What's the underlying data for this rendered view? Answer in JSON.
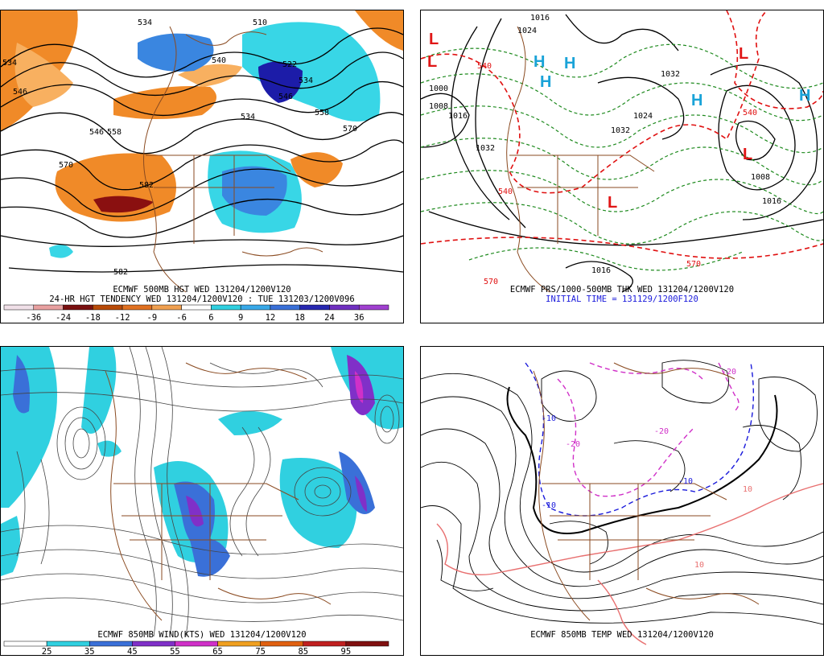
{
  "panels": {
    "hgt500": {
      "title": "ECMWF 500MB HGT WED 131204/1200V120",
      "subtitle": "24-HR HGT TENDENCY WED 131204/1200V120 : TUE 131203/1200V096",
      "colorbar_labels": [
        "-36",
        "-24",
        "-18",
        "-12",
        "-9",
        "-6",
        "6",
        "9",
        "12",
        "18",
        "24",
        "36"
      ],
      "colorbar_colors": [
        "#f0e0e8",
        "#e8a0a0",
        "#7a1010",
        "#b84a08",
        "#e07020",
        "#f0a050",
        "#ffffff",
        "#30d0e0",
        "#38a8e8",
        "#3a70d8",
        "#2828b0",
        "#7030c0",
        "#a040d0"
      ],
      "contour_labels": [
        "534",
        "510",
        "534",
        "522",
        "546",
        "534",
        "546",
        "540",
        "558",
        "570",
        "534",
        "546",
        "558",
        "570",
        "582",
        "582"
      ]
    },
    "prs": {
      "title": "ECMWF PRS/1000-500MB THK WED 131204/1200V120",
      "initial_time": "INITIAL TIME = 131129/1200F120",
      "labels_black": [
        "1016",
        "1024",
        "1032",
        "1008",
        "1000",
        "1016",
        "1032",
        "1008",
        "1016",
        "1024",
        "1032",
        "1016"
      ],
      "labels_red": [
        "540",
        "540",
        "570",
        "540",
        "570"
      ],
      "highs_lows": [
        "L",
        "L",
        "H",
        "H",
        "H",
        "L",
        "L",
        "H",
        "H",
        "L"
      ]
    },
    "wind850": {
      "title": "ECMWF 850MB WIND(KTS) WED 131204/1200V120",
      "colorbar_labels": [
        "25",
        "35",
        "45",
        "55",
        "65",
        "75",
        "85",
        "95"
      ],
      "colorbar_colors": [
        "#ffffff",
        "#30d0e0",
        "#3a70d8",
        "#8030c8",
        "#d030c8",
        "#f0a020",
        "#e06010",
        "#c02020",
        "#801010"
      ]
    },
    "temp850": {
      "title": "ECMWF 850MB TEMP WED 131204/1200V120",
      "labels_blue": [
        "-10",
        "-10",
        "-10"
      ],
      "labels_magenta": [
        "-20",
        "-20",
        "-20"
      ],
      "labels_red": [
        "10",
        "10"
      ]
    }
  },
  "colors": {
    "orange": "#f08a28",
    "dark_red": "#8a1010",
    "blue_fill": "#3a86e0",
    "cyan_fill": "#38d6e6",
    "navy": "#1c1ca8",
    "borders": "#8a4a20",
    "contour": "#000000",
    "thickness_red": "#e01010",
    "pressure_green": "#1e8a1e"
  }
}
